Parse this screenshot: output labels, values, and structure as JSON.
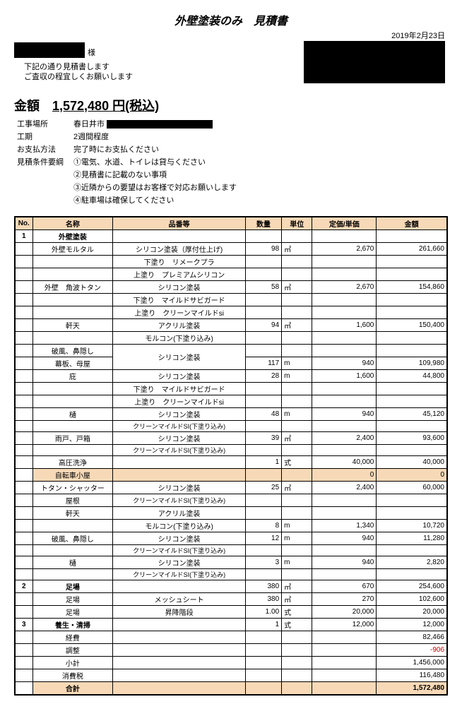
{
  "title": "外壁塗装のみ　見積書",
  "date": "2019年2月23日",
  "addressee_suffix": "様",
  "greeting1": "下記の通り見積書します",
  "greeting2": "ご査収の程宜しくお願いします",
  "amount_label": "金額",
  "amount_value": "1,572,480",
  "amount_suffix": "円(税込)",
  "info": {
    "place_label": "工事場所",
    "place_value": "春日井市",
    "period_label": "工期",
    "period_value": "2週間程度",
    "pay_label": "お支払方法",
    "pay_value": "完了時にお支払ください",
    "cond_label": "見積条件要綱",
    "cond1": "①電気、水道、トイレは貸与ください",
    "cond2": "②見積書に記載のない事項",
    "cond3": "③近隣からの要望はお客様で対応お願いします",
    "cond4": "④駐車場は確保してください"
  },
  "headers": {
    "no": "No.",
    "name": "名称",
    "item": "品番等",
    "qty": "数量",
    "unit": "単位",
    "price": "定価/単価",
    "amount": "金額"
  },
  "colors": {
    "header_bg": "#f7d9b7",
    "negative": "#cc0000"
  },
  "rows": [
    {
      "no": "1",
      "name": "外壁塗装",
      "name_bold": true
    },
    {
      "name": "外壁モルタル",
      "item": "シリコン塗装（厚付仕上げ)",
      "qty": "98",
      "unit": "㎡",
      "price": "2,670",
      "amount": "261,660"
    },
    {
      "item": "下塗り　リメークプラ"
    },
    {
      "item": "上塗り　プレミアムシリコン"
    },
    {
      "name": "外壁　角波トタン",
      "item": "シリコン塗装",
      "qty": "58",
      "unit": "㎡",
      "price": "2,670",
      "amount": "154,860"
    },
    {
      "item": "下塗り　マイルドサビガード"
    },
    {
      "item": "上塗り　クリーンマイルドsi"
    },
    {
      "name": "軒天",
      "item": "アクリル塗装",
      "qty": "94",
      "unit": "㎡",
      "price": "1,600",
      "amount": "150,400"
    },
    {
      "item": "モルコン(下塗り込み)"
    },
    {
      "name": "破風、鼻隠し",
      "item_rowspan": true,
      "item": "シリコン塗装"
    },
    {
      "name": "幕板、母屋",
      "qty": "117",
      "unit": "m",
      "price": "940",
      "amount": "109,980"
    },
    {
      "name": "庇",
      "item": "シリコン塗装",
      "qty": "28",
      "unit": "m",
      "price": "1,600",
      "amount": "44,800"
    },
    {
      "item": "下塗り　マイルドサビガード"
    },
    {
      "item": "上塗り　クリーンマイルドsi"
    },
    {
      "name": "樋",
      "item": "シリコン塗装",
      "qty": "48",
      "unit": "m",
      "price": "940",
      "amount": "45,120"
    },
    {
      "item": "クリーンマイルドSI(下塗り込み)",
      "item_small": true
    },
    {
      "name": "雨戸、戸箱",
      "item": "シリコン塗装",
      "qty": "39",
      "unit": "㎡",
      "price": "2,400",
      "amount": "93,600"
    },
    {
      "item": "クリーンマイルドSI(下塗り込み)",
      "item_small": true
    },
    {
      "name": "高圧洗浄",
      "qty": "1",
      "unit": "式",
      "price": "40,000",
      "amount": "40,000"
    },
    {
      "name": "自転車小屋",
      "peach": true,
      "price": "0",
      "amount": "0"
    },
    {
      "name": "トタン・シャッター",
      "item": "シリコン塗装",
      "qty": "25",
      "unit": "㎡",
      "price": "2,400",
      "amount": "60,000"
    },
    {
      "name": "屋根",
      "item": "クリーンマイルドSI(下塗り込み)",
      "item_small": true
    },
    {
      "name": "軒天",
      "item": "アクリル塗装"
    },
    {
      "item": "モルコン(下塗り込み)",
      "qty": "8",
      "unit": "m",
      "price": "1,340",
      "amount": "10,720"
    },
    {
      "name": "破風、鼻隠し",
      "item": "シリコン塗装",
      "qty": "12",
      "unit": "m",
      "price": "940",
      "amount": "11,280"
    },
    {
      "item": "クリーンマイルドSI(下塗り込み)",
      "item_small": true
    },
    {
      "name": "樋",
      "item": "シリコン塗装",
      "qty": "3",
      "unit": "m",
      "price": "940",
      "amount": "2,820"
    },
    {
      "item": "クリーンマイルドSI(下塗り込み)",
      "item_small": true
    },
    {
      "no": "2",
      "name": "足場",
      "name_bold": true,
      "qty": "380",
      "unit": "㎡",
      "price": "670",
      "amount": "254,600"
    },
    {
      "name": "足場",
      "item": "メッシュシート",
      "qty": "380",
      "unit": "㎡",
      "price": "270",
      "amount": "102,600"
    },
    {
      "name": "足場",
      "item": "昇降階段",
      "qty": "1.00",
      "unit": "式",
      "price": "20,000",
      "amount": "20,000"
    },
    {
      "no": "3",
      "name": "養生・清掃",
      "name_bold": true,
      "qty": "1",
      "unit": "式",
      "price": "12,000",
      "amount": "12,000"
    },
    {
      "name": "経費",
      "amount": "82,466"
    },
    {
      "name": "調整",
      "amount": "-906",
      "neg": true
    },
    {
      "name": "小計",
      "amount": "1,456,000"
    },
    {
      "name": "消費税",
      "amount": "116,480"
    },
    {
      "name": "合計",
      "name_bold": true,
      "peach": true,
      "amount": "1,572,480",
      "amount_bold": true,
      "total": true
    }
  ]
}
